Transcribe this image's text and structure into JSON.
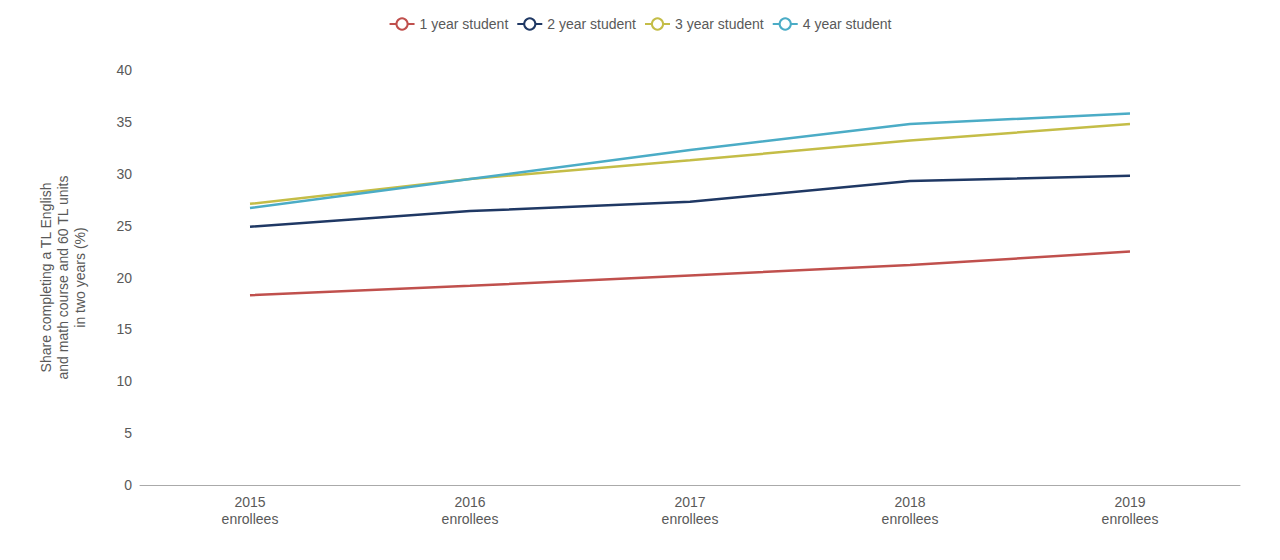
{
  "chart_data": {
    "type": "line",
    "categories": [
      "2015\nenrollees",
      "2016\nenrollees",
      "2017\nenrollees",
      "2018\nenrollees",
      "2019\nenrollees"
    ],
    "series": [
      {
        "name": "1 year student",
        "color": "#C0504D",
        "values": [
          18.3,
          19.2,
          20.2,
          21.2,
          22.5
        ]
      },
      {
        "name": "2 year student",
        "color": "#1F3864",
        "values": [
          24.9,
          26.4,
          27.3,
          29.3,
          29.8
        ]
      },
      {
        "name": "3 year student",
        "color": "#C4BD47",
        "values": [
          27.1,
          29.5,
          31.3,
          33.2,
          34.8
        ]
      },
      {
        "name": "4 year student",
        "color": "#4BACC6",
        "values": [
          26.7,
          29.5,
          32.3,
          34.8,
          35.8
        ]
      }
    ],
    "ylabel": "Share completing a TL English\nand math course and 60 TL units\nin two years (%)",
    "ylim": [
      0,
      40
    ],
    "yticks": [
      0,
      5,
      10,
      15,
      20,
      25,
      30,
      35,
      40
    ],
    "grid": false,
    "legend": "top"
  }
}
